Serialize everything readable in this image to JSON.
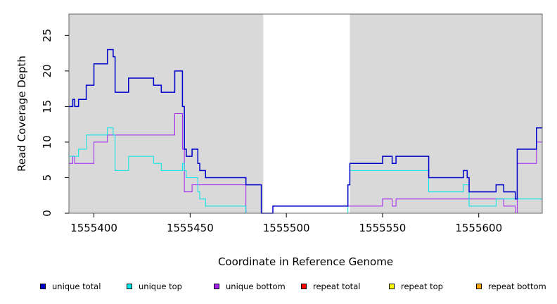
{
  "chart_data": {
    "type": "line",
    "title": "",
    "xlabel": "Coordinate in Reference Genome",
    "ylabel": "Read Coverage Depth",
    "xlim": [
      1555387,
      1555633
    ],
    "ylim": [
      0,
      28
    ],
    "xticks": [
      1555400,
      1555450,
      1555500,
      1555550,
      1555600
    ],
    "yticks": [
      0,
      5,
      10,
      15,
      20,
      25
    ],
    "grid": false,
    "legend_position": "bottom",
    "shaded_regions": [
      [
        1555387,
        1555488
      ],
      [
        1555533,
        1555633
      ]
    ],
    "shaded_color": "#d9d9d9",
    "series": [
      {
        "name": "unique total",
        "color": "#0000cc",
        "points": [
          [
            1555387,
            15
          ],
          [
            1555389,
            16
          ],
          [
            1555390,
            15
          ],
          [
            1555392,
            16
          ],
          [
            1555396,
            18
          ],
          [
            1555400,
            21
          ],
          [
            1555407,
            23
          ],
          [
            1555410,
            22
          ],
          [
            1555411,
            17
          ],
          [
            1555418,
            19
          ],
          [
            1555431,
            18
          ],
          [
            1555435,
            17
          ],
          [
            1555442,
            20
          ],
          [
            1555446,
            15
          ],
          [
            1555447,
            9
          ],
          [
            1555448,
            8
          ],
          [
            1555451,
            9
          ],
          [
            1555454,
            7
          ],
          [
            1555455,
            6
          ],
          [
            1555458,
            5
          ],
          [
            1555479,
            4
          ],
          [
            1555487,
            0
          ],
          [
            1555493,
            1
          ],
          [
            1555532,
            4
          ],
          [
            1555533,
            7
          ],
          [
            1555550,
            8
          ],
          [
            1555555,
            7
          ],
          [
            1555557,
            8
          ],
          [
            1555574,
            5
          ],
          [
            1555592,
            6
          ],
          [
            1555594,
            5
          ],
          [
            1555595,
            3
          ],
          [
            1555609,
            4
          ],
          [
            1555613,
            3
          ],
          [
            1555619,
            2
          ],
          [
            1555620,
            9
          ],
          [
            1555630,
            12
          ],
          [
            1555633,
            12
          ]
        ]
      },
      {
        "name": "unique top",
        "color": "#00e5e5",
        "points": [
          [
            1555387,
            8
          ],
          [
            1555392,
            9
          ],
          [
            1555396,
            11
          ],
          [
            1555407,
            12
          ],
          [
            1555410,
            11
          ],
          [
            1555411,
            6
          ],
          [
            1555418,
            8
          ],
          [
            1555431,
            7
          ],
          [
            1555435,
            6
          ],
          [
            1555446,
            7
          ],
          [
            1555447,
            6
          ],
          [
            1555448,
            5
          ],
          [
            1555454,
            3
          ],
          [
            1555455,
            2
          ],
          [
            1555458,
            1
          ],
          [
            1555479,
            0
          ],
          [
            1555532,
            4
          ],
          [
            1555533,
            6
          ],
          [
            1555574,
            3
          ],
          [
            1555592,
            4
          ],
          [
            1555595,
            1
          ],
          [
            1555609,
            2
          ],
          [
            1555633,
            2
          ]
        ]
      },
      {
        "name": "unique bottom",
        "color": "#a020f0",
        "points": [
          [
            1555387,
            7
          ],
          [
            1555389,
            8
          ],
          [
            1555390,
            7
          ],
          [
            1555400,
            10
          ],
          [
            1555407,
            11
          ],
          [
            1555442,
            14
          ],
          [
            1555446,
            9
          ],
          [
            1555447,
            3
          ],
          [
            1555451,
            4
          ],
          [
            1555479,
            0
          ],
          [
            1555493,
            1
          ],
          [
            1555533,
            1
          ],
          [
            1555550,
            2
          ],
          [
            1555555,
            1
          ],
          [
            1555557,
            2
          ],
          [
            1555613,
            1
          ],
          [
            1555619,
            0
          ],
          [
            1555620,
            7
          ],
          [
            1555630,
            10
          ],
          [
            1555633,
            10
          ]
        ]
      },
      {
        "name": "repeat total",
        "color": "#ff0000",
        "points": [
          [
            1555387,
            0
          ],
          [
            1555633,
            0
          ]
        ]
      },
      {
        "name": "repeat top",
        "color": "#ffff00",
        "points": [
          [
            1555387,
            0
          ],
          [
            1555633,
            0
          ]
        ]
      },
      {
        "name": "repeat bottom",
        "color": "#ffa500",
        "points": [
          [
            1555387,
            0
          ],
          [
            1555633,
            0
          ]
        ]
      }
    ]
  },
  "legend_items": [
    "unique total",
    "unique top",
    "unique bottom",
    "repeat total",
    "repeat top",
    "repeat bottom"
  ]
}
